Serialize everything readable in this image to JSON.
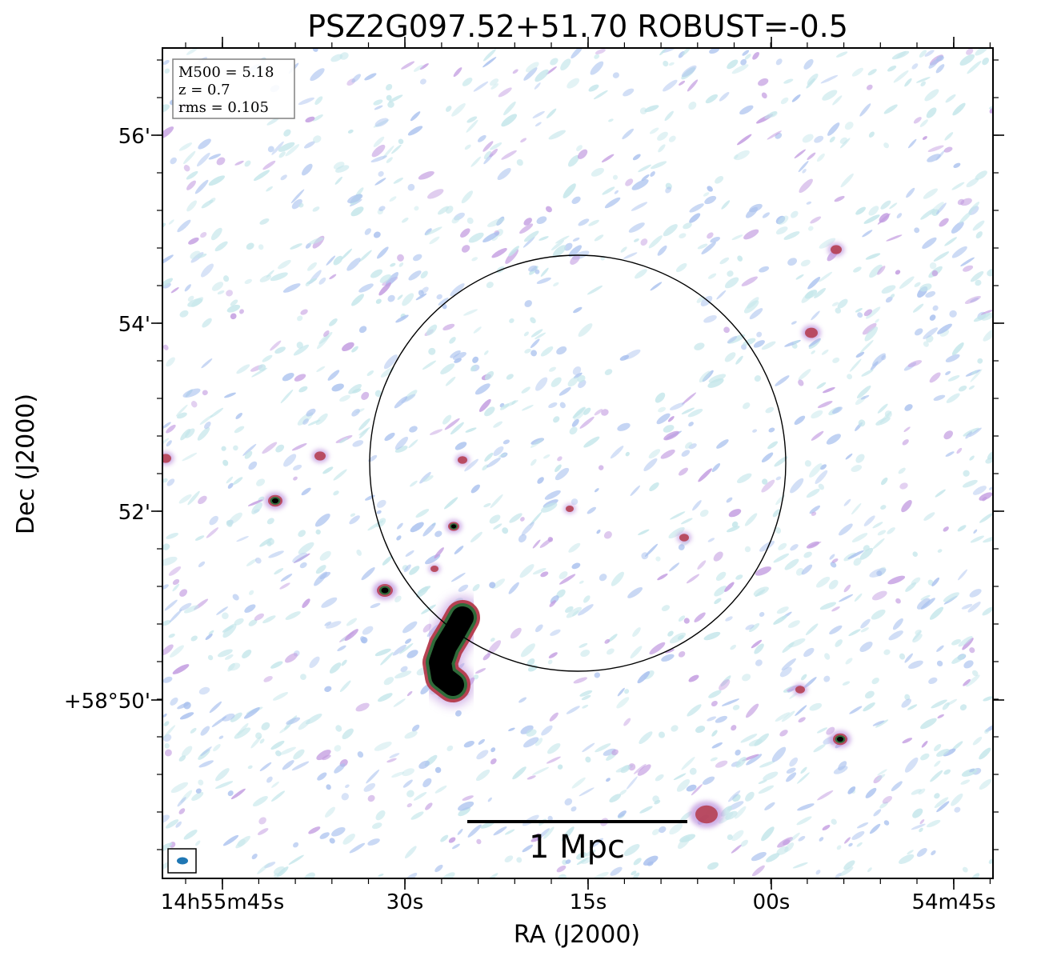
{
  "title": "PSZ2G097.52+51.70 ROBUST=-0.5",
  "xlabel": "RA (J2000)",
  "ylabel": "Dec (J2000)",
  "x_ticks": [
    "14h55m45s",
    "30s",
    "15s",
    "00s",
    "54m45s"
  ],
  "y_ticks": [
    "56'",
    "54'",
    "52'",
    "+58°50'"
  ],
  "info": {
    "mass": "M500 = 5.18",
    "redshift": "z = 0.7",
    "rms": "rms = 0.105"
  },
  "scalebar_label": "1 Mpc",
  "colors": {
    "noise_light": "#c4e6ea",
    "noise_blue": "#a9c1ee",
    "noise_purple": "#c29be0",
    "source_red": "#b43a4a",
    "source_green": "#2f6b3a",
    "source_core": "#000000",
    "beam": "#1f77b4"
  }
}
